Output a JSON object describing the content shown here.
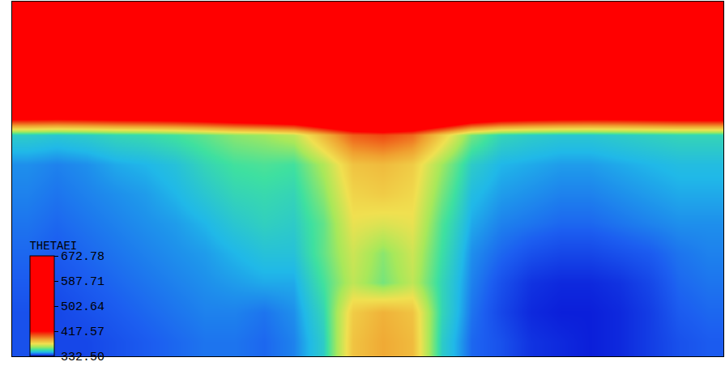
{
  "chart_data": {
    "type": "heatmap",
    "colorbar_title": "THETAEI",
    "tick_labels": false,
    "colorbar_range": [
      332.5,
      672.78
    ],
    "colorbar_ticks": [
      {
        "value": 332.5,
        "label": "332.50"
      },
      417.57,
      502.64,
      587.71,
      672.78
    ],
    "z": [
      [
        338,
        337,
        337,
        338,
        339,
        340,
        341,
        341,
        340,
        342,
        350,
        382,
        388,
        384,
        350,
        340,
        338,
        335,
        334,
        333,
        334,
        336,
        338,
        339
      ],
      [
        338,
        337,
        338,
        339,
        340,
        341,
        342,
        342,
        341,
        343,
        352,
        380,
        386,
        382,
        352,
        341,
        337,
        334,
        333,
        333,
        334,
        336,
        339,
        340
      ],
      [
        339,
        338,
        339,
        340,
        341,
        342,
        343,
        344,
        345,
        345,
        355,
        368,
        360,
        368,
        352,
        342,
        338,
        335,
        334,
        334,
        335,
        337,
        340,
        341
      ],
      [
        340,
        339,
        340,
        341,
        342,
        343,
        344,
        346,
        348,
        348,
        358,
        370,
        362,
        370,
        354,
        343,
        340,
        338,
        337,
        337,
        338,
        339,
        341,
        342
      ],
      [
        341,
        340,
        341,
        342,
        343,
        344,
        346,
        349,
        351,
        350,
        358,
        374,
        372,
        374,
        356,
        345,
        342,
        341,
        340,
        340,
        341,
        342,
        343,
        343
      ],
      [
        342,
        341,
        342,
        343,
        344,
        346,
        349,
        352,
        353,
        352,
        362,
        378,
        380,
        377,
        360,
        347,
        344,
        343,
        342,
        342,
        343,
        344,
        345,
        345
      ],
      [
        343,
        342,
        343,
        345,
        346,
        348,
        352,
        355,
        356,
        355,
        366,
        382,
        384,
        380,
        364,
        350,
        346,
        345,
        344,
        344,
        345,
        346,
        347,
        347
      ],
      [
        350,
        349,
        350,
        352,
        353,
        355,
        358,
        362,
        364,
        368,
        385,
        402,
        406,
        400,
        380,
        360,
        352,
        350,
        349,
        349,
        350,
        351,
        352,
        352
      ],
      [
        480,
        478,
        480,
        482,
        484,
        486,
        490,
        495,
        500,
        505,
        515,
        525,
        530,
        525,
        515,
        500,
        490,
        485,
        482,
        480,
        480,
        482,
        484,
        485
      ],
      [
        580,
        579,
        580,
        581,
        582,
        583,
        585,
        587,
        590,
        592,
        596,
        600,
        602,
        600,
        596,
        592,
        588,
        585,
        583,
        582,
        582,
        583,
        584,
        585
      ],
      [
        630,
        629,
        630,
        631,
        632,
        633,
        634,
        635,
        636,
        638,
        640,
        642,
        643,
        642,
        640,
        638,
        636,
        635,
        634,
        633,
        633,
        634,
        635,
        636
      ],
      [
        665,
        664,
        665,
        665,
        666,
        666,
        667,
        667,
        668,
        668,
        669,
        670,
        670,
        670,
        669,
        668,
        668,
        667,
        667,
        666,
        666,
        666,
        667,
        667
      ]
    ]
  }
}
